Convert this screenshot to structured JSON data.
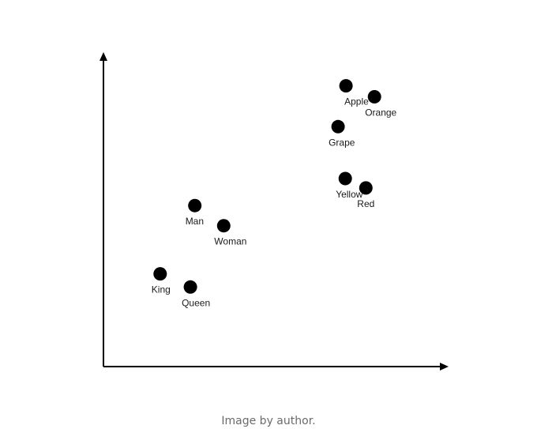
{
  "chart_data": {
    "type": "scatter",
    "title": "",
    "xlabel": "",
    "ylabel": "",
    "xlim": [
      0,
      100
    ],
    "ylim": [
      0,
      100
    ],
    "grid": false,
    "axis_ticks": false,
    "point_color": "#000000",
    "points": [
      {
        "label": "Apple",
        "x": 70.6,
        "y": 89.3,
        "label_dx": -2,
        "label_dy": 24
      },
      {
        "label": "Orange",
        "x": 78.9,
        "y": 85.8,
        "label_dx": -12,
        "label_dy": 24
      },
      {
        "label": "Grape",
        "x": 68.3,
        "y": 76.3,
        "label_dx": -12,
        "label_dy": 24
      },
      {
        "label": "Yellow",
        "x": 70.4,
        "y": 59.8,
        "label_dx": -12,
        "label_dy": 24
      },
      {
        "label": "Red",
        "x": 76.4,
        "y": 56.8,
        "label_dx": -11,
        "label_dy": 24
      },
      {
        "label": "Man",
        "x": 26.6,
        "y": 51.2,
        "label_dx": -12,
        "label_dy": 24
      },
      {
        "label": "Woman",
        "x": 35.0,
        "y": 44.8,
        "label_dx": -12,
        "label_dy": 24
      },
      {
        "label": "King",
        "x": 16.5,
        "y": 29.5,
        "label_dx": -11,
        "label_dy": 24
      },
      {
        "label": "Queen",
        "x": 25.3,
        "y": 25.3,
        "label_dx": -11,
        "label_dy": 24
      }
    ]
  },
  "caption": "Image by author."
}
